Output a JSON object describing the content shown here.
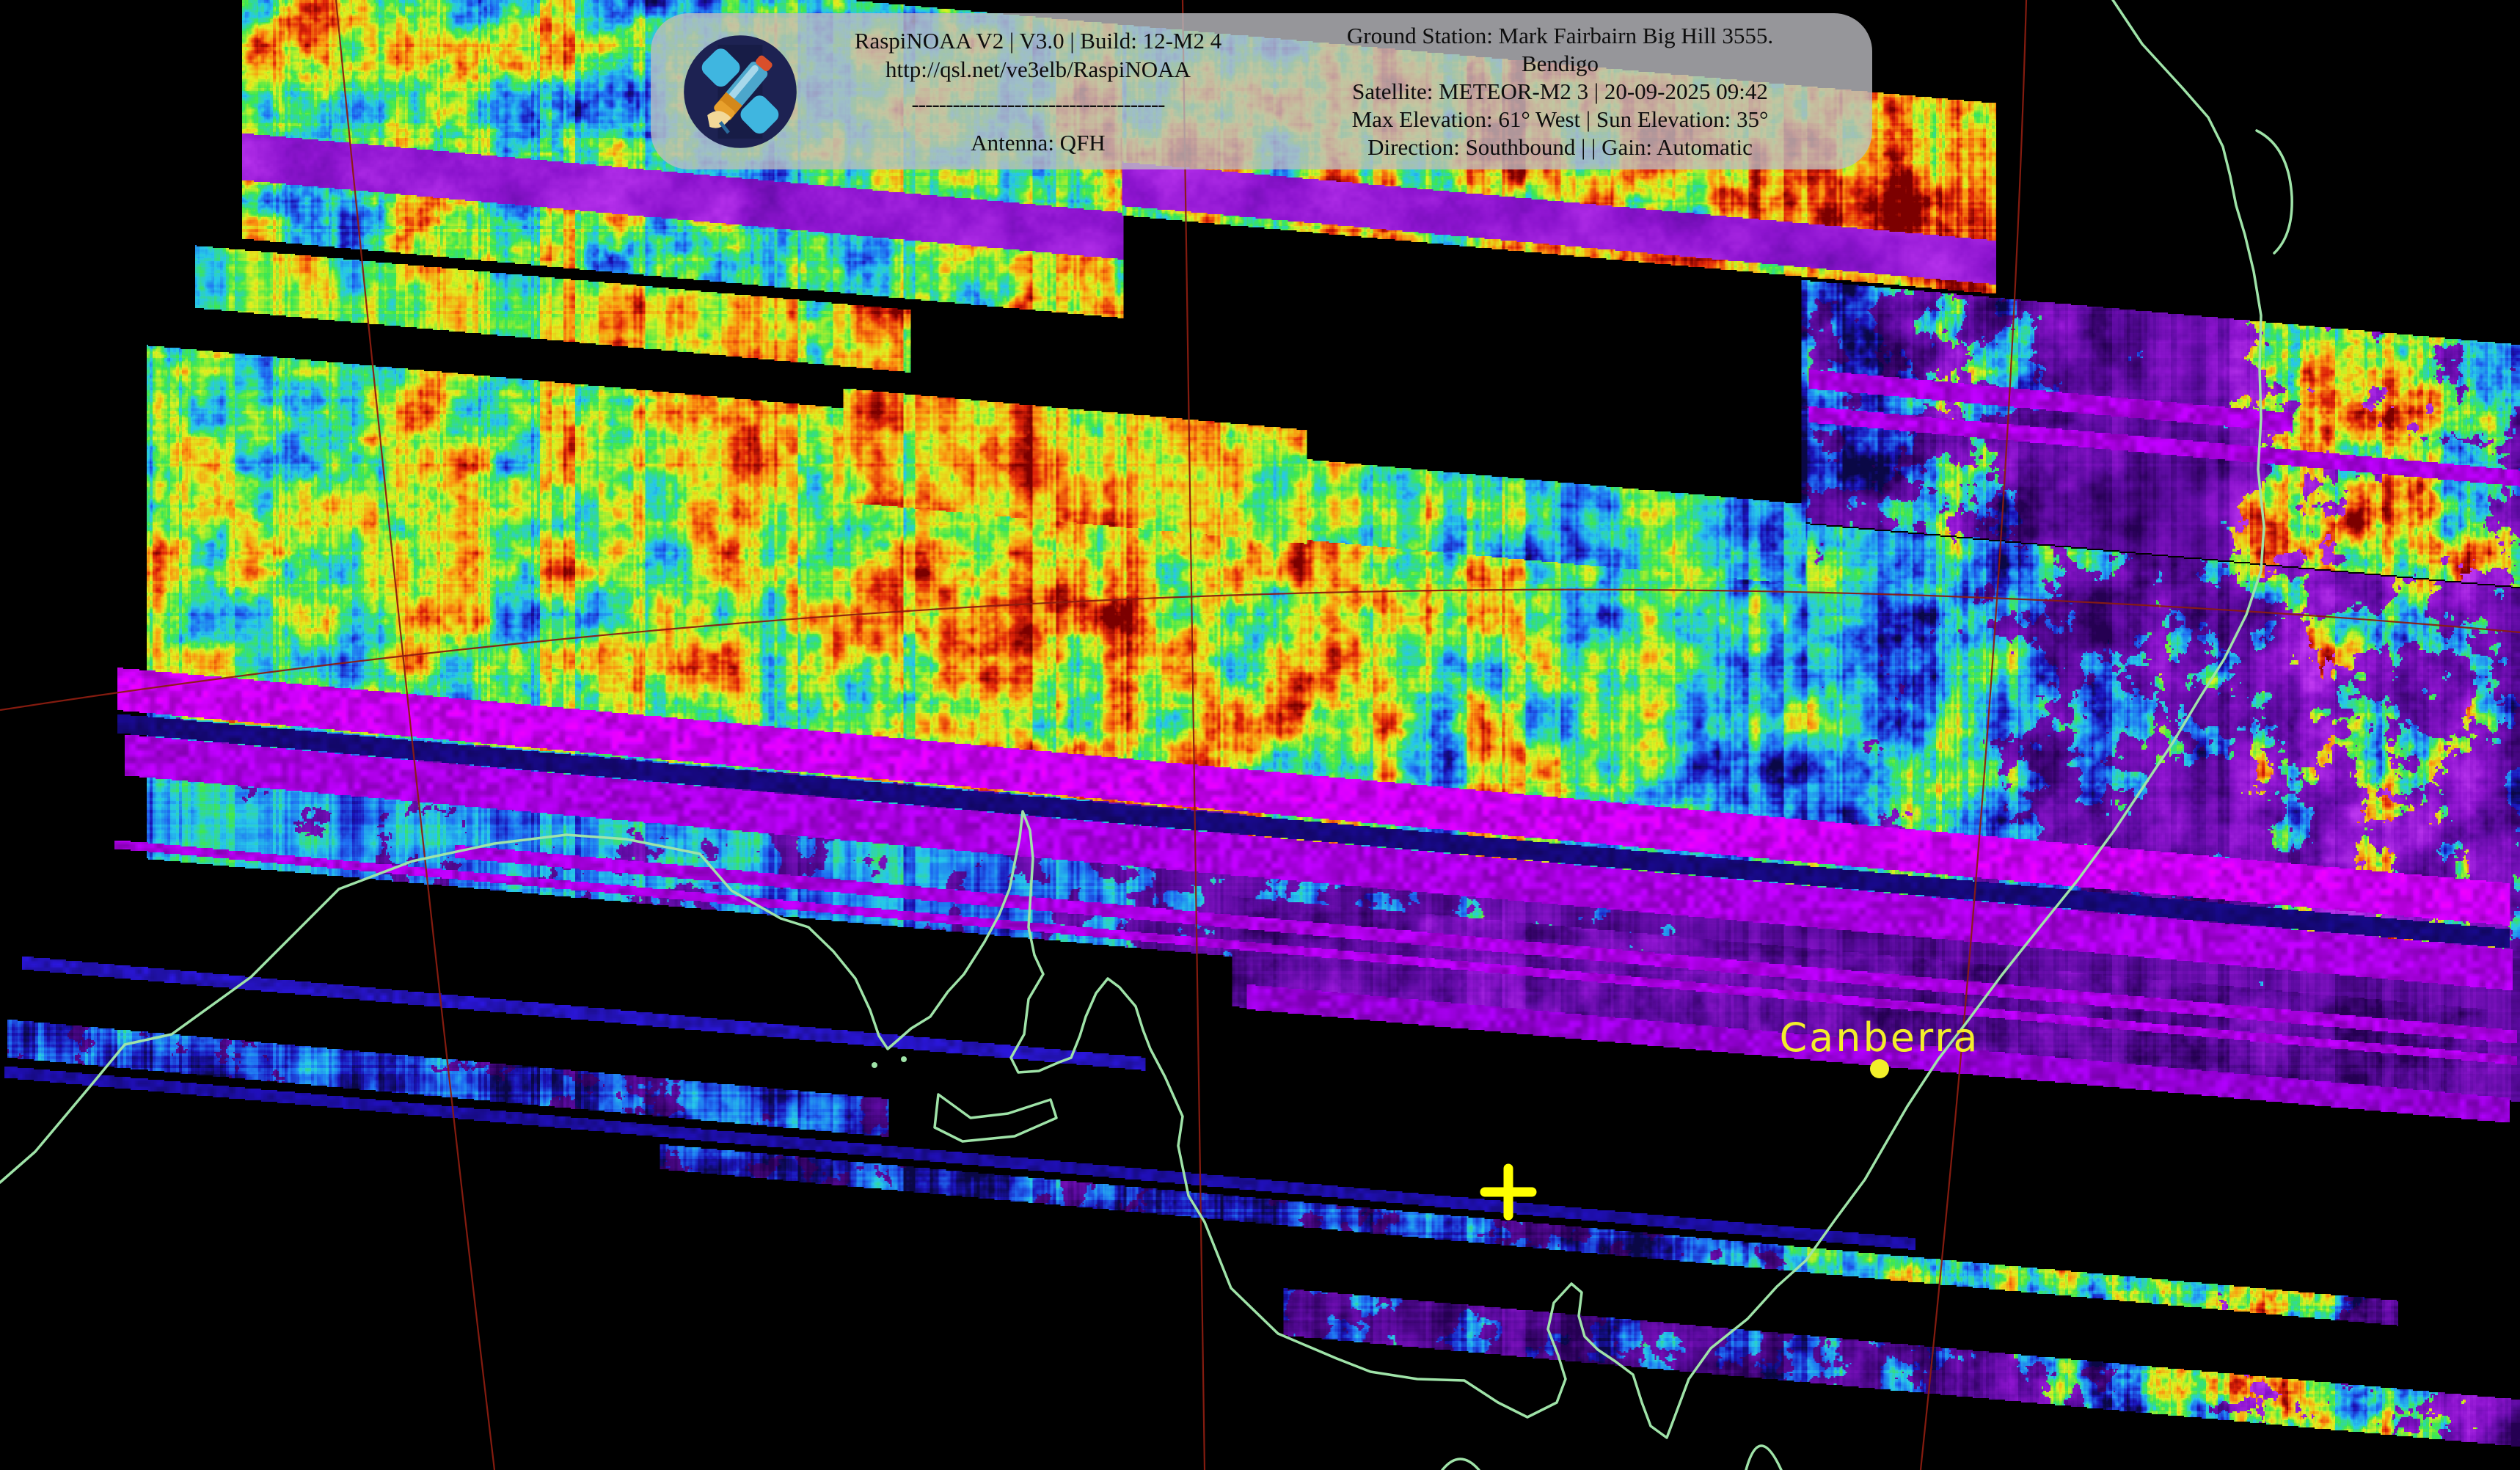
{
  "header": {
    "logo": "raspinoaa-satellite-logo",
    "left": {
      "line1": "RaspiNOAA V2 | V3.0 | Build: 12-M2 4",
      "line2": "http://qsl.net/ve3elb/RaspiNOAA",
      "divider": "-------------------------------------",
      "line3": "Antenna: QFH"
    },
    "right": {
      "line1": "Ground Station: Mark Fairbairn Big Hill 3555.",
      "line2": "Bendigo",
      "line3": "Satellite: METEOR-M2 3 | 20-09-2025 09:42",
      "line4": "Max Elevation: 61° West | Sun Elevation: 35°",
      "line5": "Direction: Southbound | | Gain: Automatic"
    }
  },
  "map": {
    "city_label": "Canberra",
    "colors": {
      "background": "#000000",
      "coastline": "#9fe3a8",
      "grid": "#8b1c10",
      "city_marker": "#f2ee2a",
      "ground_station_cross": "#ffff00"
    }
  },
  "imagery": {
    "colors": {
      "thermal_palette": [
        "#0a0846",
        "#1b12b8",
        "#1f6ef2",
        "#27c8ea",
        "#3de84e",
        "#dff020",
        "#fb9410",
        "#e02408",
        "#7c0000"
      ],
      "purple_palette": [
        "#250052",
        "#5a0a9e",
        "#8d14cf",
        "#b631ec",
        "#d84efc"
      ],
      "sync_stripes": {
        "bright": "#c800f2",
        "mid": "#a800e0",
        "dim": "#9400d4",
        "dark_row": "#150878",
        "blue_thin": "#2413bb",
        "blue_dark": "#1b0d9e"
      }
    }
  }
}
